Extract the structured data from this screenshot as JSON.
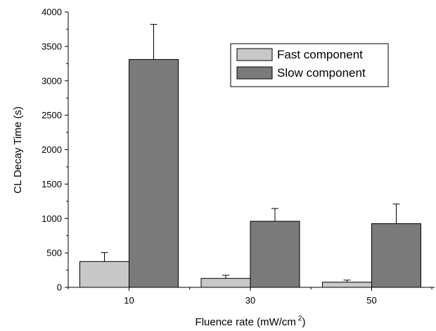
{
  "chart_data": {
    "type": "bar",
    "categories": [
      "10",
      "30",
      "50"
    ],
    "series": [
      {
        "name": "Fast component",
        "values": [
          375,
          130,
          75
        ],
        "error": [
          130,
          45,
          30
        ],
        "color": "#c8c8c8"
      },
      {
        "name": "Slow component",
        "values": [
          3310,
          960,
          925
        ],
        "error": [
          510,
          185,
          285
        ],
        "color": "#7a7a7a"
      }
    ],
    "xlabel": "Fluence rate (mW/cm",
    "xlabel_superscript": "2",
    "xlabel_close": ")",
    "ylabel": "CL Decay Time (s)",
    "ylim": [
      0,
      4000
    ],
    "yticks": [
      0,
      500,
      1000,
      1500,
      2000,
      2500,
      3000,
      3500,
      4000
    ],
    "legend_position": "top-right",
    "grid": false
  }
}
